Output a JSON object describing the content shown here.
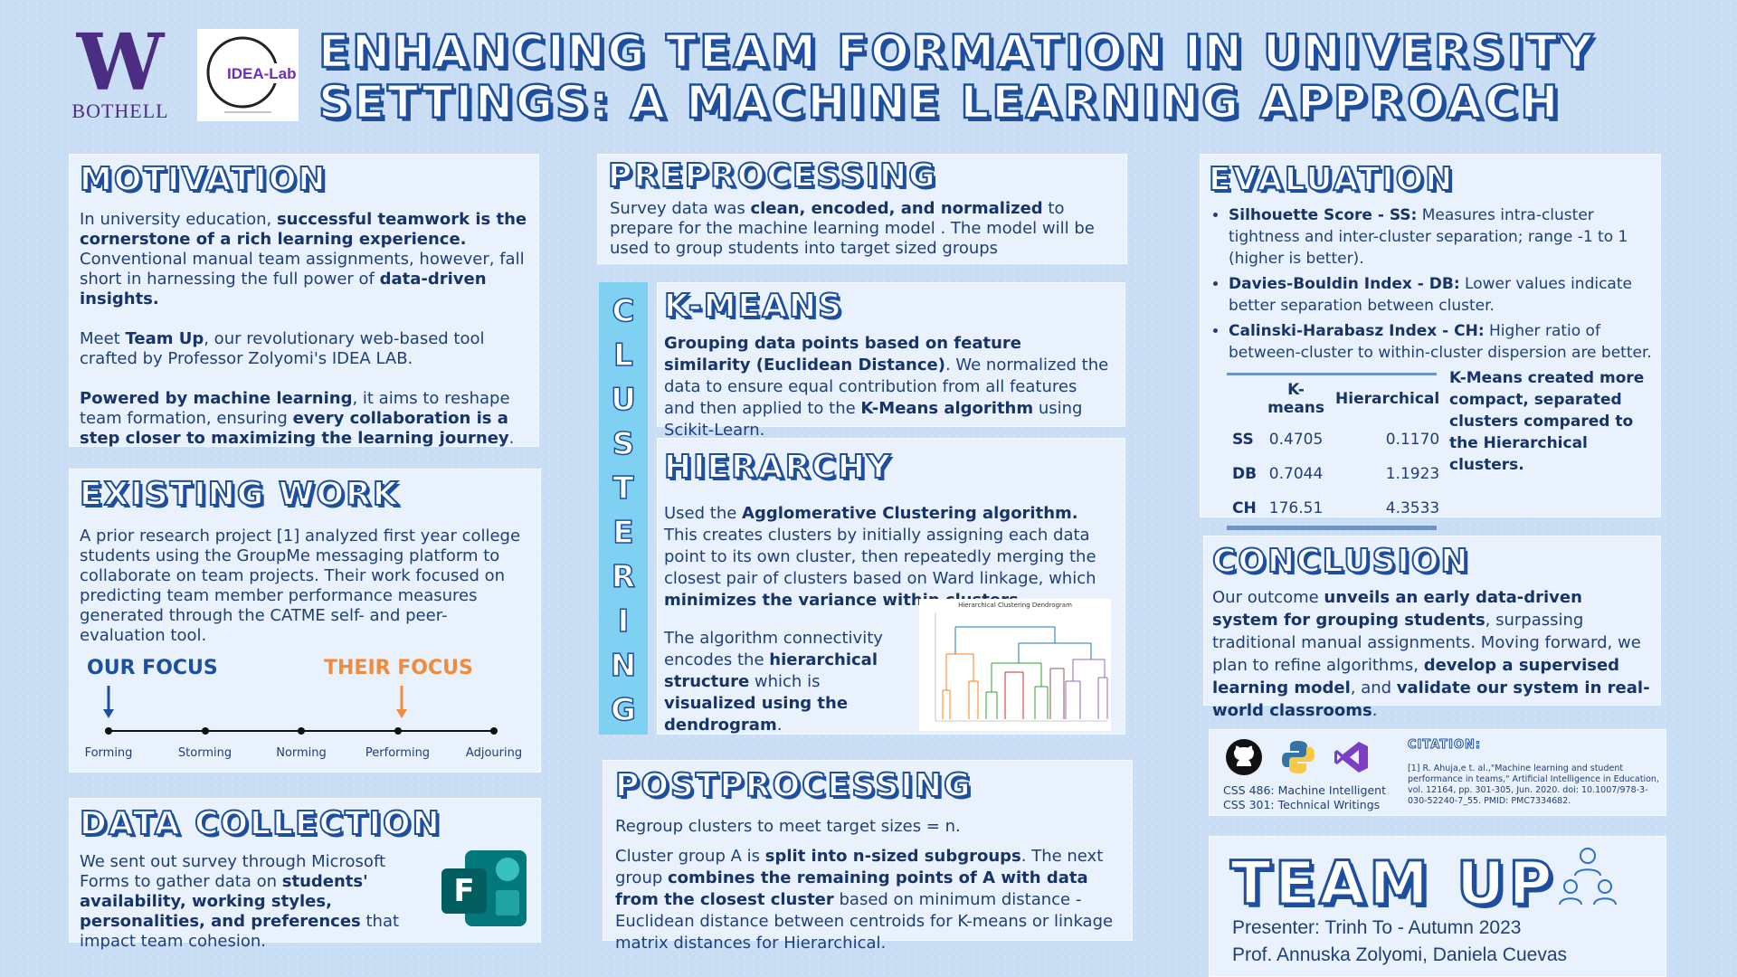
{
  "header": {
    "uw_letter": "W",
    "uw_campus": "BOTHELL",
    "idea_lab_logo_text": "IDEA-Lab",
    "title_line1": "ENHANCING TEAM FORMATION IN UNIVERSITY",
    "title_line2": "SETTINGS: A MACHINE LEARNING APPROACH"
  },
  "motivation": {
    "heading": "MOTIVATION",
    "p1_a": "In university education, ",
    "p1_b": "successful teamwork is the cornerstone of a rich learning experience.",
    "p1_c": " Conventional manual team assignments, however, fall short in harnessing the full power of ",
    "p1_d": "data-driven insights.",
    "p2_a": "Meet ",
    "p2_b": "Team Up",
    "p2_c": ", our revolutionary web-based tool crafted by Professor Zolyomi's IDEA LAB.",
    "p3_a": "Powered by machine learning",
    "p3_b": ", it aims to reshape team formation, ensuring ",
    "p3_c": "every collaboration is a step closer to maximizing the learning journey",
    "p3_d": "."
  },
  "existing_work": {
    "heading": "EXISTING WORK",
    "text": "A prior research project [1] analyzed first year college students using the GroupMe messaging platform to collaborate on team projects. Their work focused on predicting team member performance measures generated through the CATME self- and peer- evaluation tool.",
    "our_focus": "OUR FOCUS",
    "their_focus": "THEIR FOCUS",
    "stages": [
      "Forming",
      "Storming",
      "Norming",
      "Performing",
      "Adjouring"
    ],
    "our_focus_stage": "Forming",
    "their_focus_stage": "Performing",
    "colors": {
      "our": "#1d4f9e",
      "their": "#f08a3c"
    }
  },
  "data_collection": {
    "heading": "DATA COLLECTION",
    "t1": "We sent out survey through Microsoft Forms to gather data on ",
    "t2": "students' availability, working styles, personalities, and preferences",
    "t3": " that impact team cohesion.",
    "forms_icon_letter": "F"
  },
  "preprocessing": {
    "heading": "PREPROCESSING",
    "t1": "Survey data was ",
    "t2": "clean, encoded, and normalized",
    "t3": " to prepare for the machine learning model . The model will be used to group students into target sized groups"
  },
  "clustering_letters": [
    "C",
    "L",
    "U",
    "S",
    "T",
    "E",
    "R",
    "I",
    "N",
    "G"
  ],
  "kmeans": {
    "heading": "K-MEANS",
    "t1": "Grouping data points based on feature similarity (Euclidean Distance)",
    "t2": ". We normalized the data to ensure equal contribution from all features and then applied to the ",
    "t3": "K-Means algorithm",
    "t4": " using Scikit-Learn."
  },
  "hierarchy": {
    "heading": "HIERARCHY",
    "t1": "Used the ",
    "t2": "Agglomerative Clustering algorithm.",
    "t3": " This creates clusters by initially assigning each data point to its own cluster, then repeatedly merging the closest pair of clusters based on Ward linkage, which ",
    "t4": "minimizes the variance within clusters",
    "t5": ".",
    "s1": "The algorithm connectivity encodes the ",
    "s2": "hierarchical structure",
    "s3": " which is ",
    "s4": "visualized using the dendrogram",
    "s5": ".",
    "dendrogram_title": "Hierarchical Clustering Dendrogram"
  },
  "postprocessing": {
    "heading": "POSTPROCESSING",
    "p1": "Regroup clusters to meet target sizes = n.",
    "p2_a": "Cluster group A is ",
    "p2_b": "split into n-sized subgroups",
    "p2_c": ". The next group ",
    "p2_d": "combines the remaining points of A with data from the closest cluster",
    "p2_e": " based on minimum distance - Euclidean distance between centroids for K-means or linkage matrix distances for Hierarchical."
  },
  "evaluation": {
    "heading": "EVALUATION",
    "bullets": [
      {
        "term": "Silhouette Score - SS:",
        "desc": " Measures intra-cluster tightness and inter-cluster separation; range -1 to 1 (higher is better)."
      },
      {
        "term": "Davies-Bouldin Index - DB:",
        "desc": " Lower values indicate better separation between cluster."
      },
      {
        "term": "Calinski-Harabasz Index - CH:",
        "desc": " Higher ratio of between-cluster to within-cluster dispersion are better."
      }
    ],
    "table": {
      "headers": [
        "",
        "K-means",
        "Hierarchical"
      ],
      "rows": [
        [
          "SS",
          "0.4705",
          "0.1170"
        ],
        [
          "DB",
          "0.7044",
          "1.1923"
        ],
        [
          "CH",
          "176.51",
          "4.3533"
        ]
      ]
    },
    "note": "K-Means created more compact, separated clusters compared to the Hierarchical clusters."
  },
  "conclusion": {
    "heading": "CONCLUSION",
    "t1": "Our outcome ",
    "t2": "unveils an early data-driven system for grouping students",
    "t3": ", surpassing traditional manual assignments. Moving forward, we plan to refine algorithms, ",
    "t4": "develop a supervised learning model",
    "t5": ", and ",
    "t6": "validate our system in real-world classrooms",
    "t7": "."
  },
  "tools": {
    "course1": "CSS 486: Machine Intelligent",
    "course2": "CSS 301:  Technical Writings",
    "citation_heading": "CITATION:",
    "citation": "[1] R. Ahuja,e t. al.,\"Machine learning and student performance in teams,\" Artificial Intelligence in Education, vol. 12164, pp. 301-305, Jun. 2020. doi: 10.1007/978-3-030-52240-7_55. PMID: PMC7334682."
  },
  "team_up": {
    "title": "TEAM UP",
    "presenter": "Presenter: Trinh To - Autumn 2023",
    "profs": "Prof. Annuska Zolyomi, Daniela Cuevas"
  }
}
